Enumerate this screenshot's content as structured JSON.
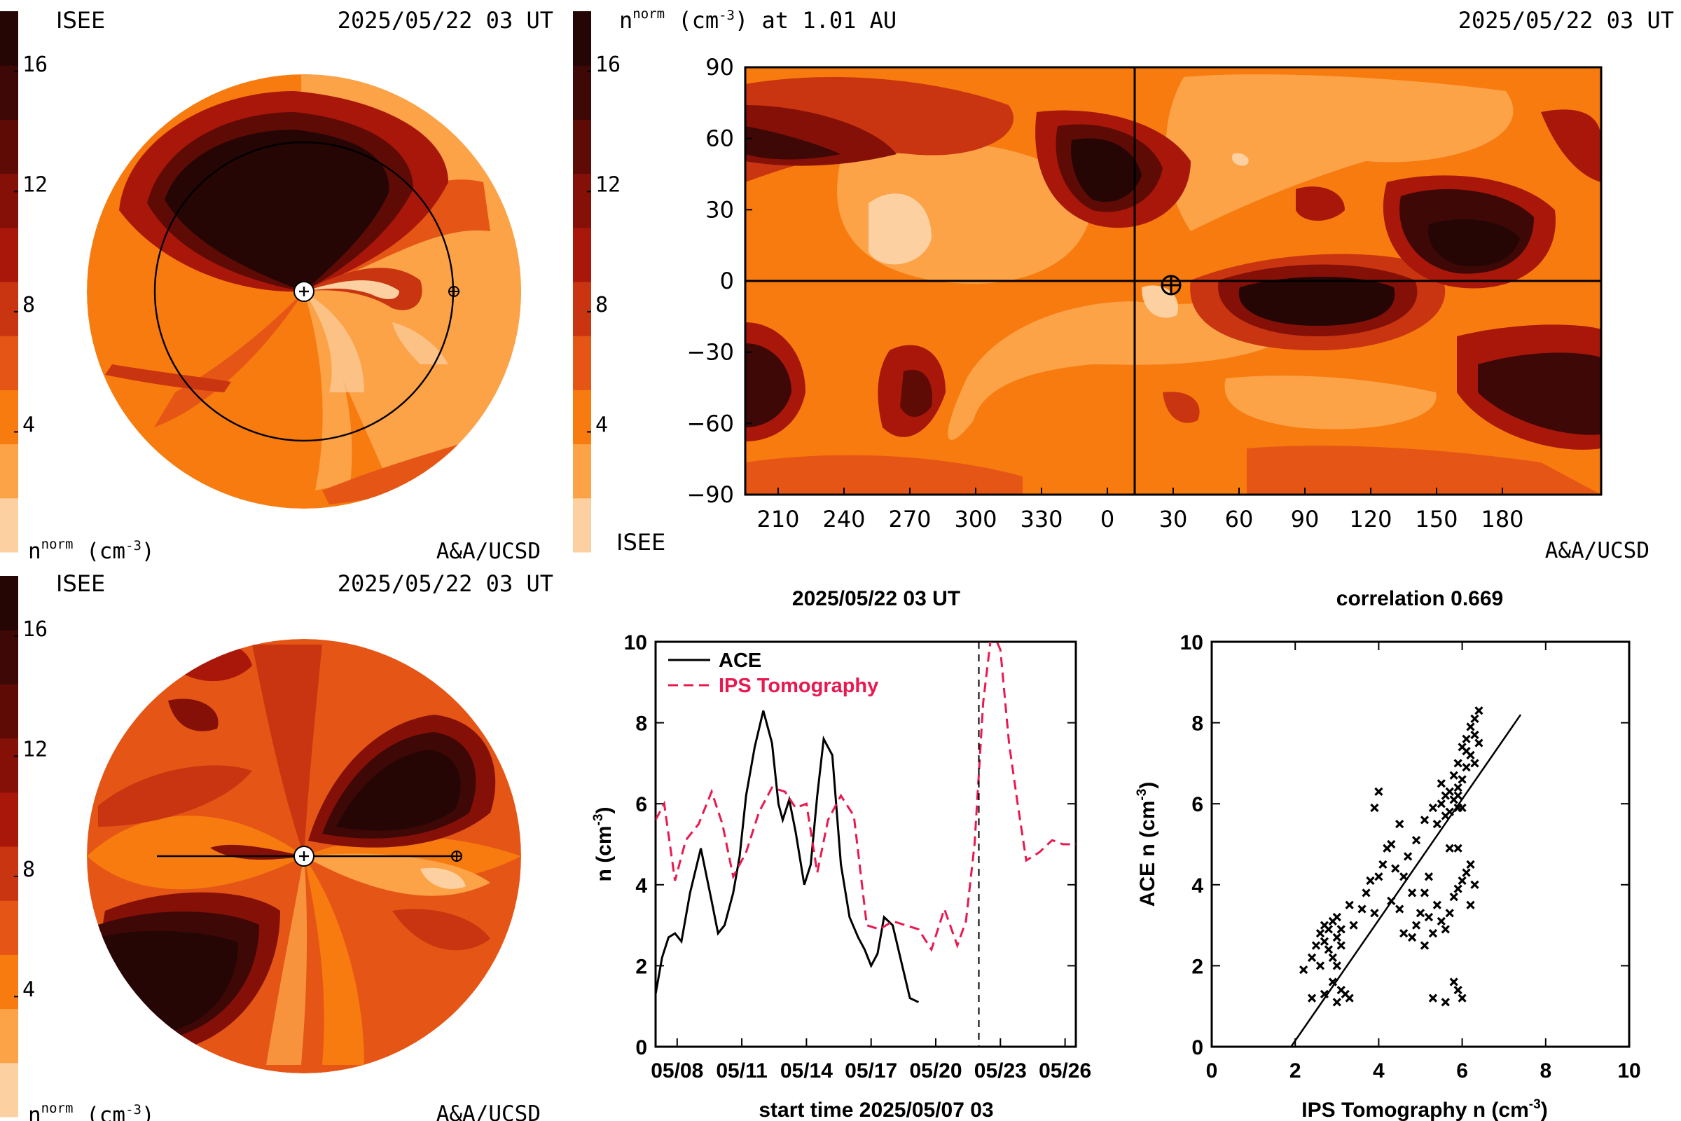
{
  "colors": {
    "scale": [
      "#fcd0a0",
      "#fca247",
      "#f77b0f",
      "#e55616",
      "#c83510",
      "#a8170a",
      "#851008",
      "#5e0b06",
      "#3e0806",
      "#250605"
    ],
    "ace": "#000000",
    "ips": "#e8194f"
  },
  "colorbar": {
    "ticks": [
      4,
      8,
      12,
      16
    ],
    "label": "n",
    "label_sup": "norm",
    "label_units": " (cm",
    "label_units_sup": "-3",
    "label_units_end": ")"
  },
  "panel_top_left": {
    "org": "ISEE",
    "date": "2025/05/22 03 UT",
    "credit": "A&A/UCSD"
  },
  "panel_top_right": {
    "title": "n",
    "title_sup": "norm",
    "title_rest": " (cm",
    "title_rest_sup": "-3",
    "title_end": ") at 1.01 AU",
    "date": "2025/05/22 03 UT",
    "org": "ISEE",
    "credit": "A&A/UCSD",
    "x_ticks": [
      "210",
      "240",
      "270",
      "300",
      "330",
      "0",
      "30",
      "60",
      "90",
      "120",
      "150",
      "180"
    ],
    "y_ticks": [
      "90",
      "60",
      "30",
      "0",
      "−30",
      "−60",
      "−90"
    ],
    "earth_marker": "earth-icon"
  },
  "panel_bottom_left": {
    "org": "ISEE",
    "date": "2025/05/22 03 UT",
    "credit": "A&A/UCSD"
  },
  "chart_data": [
    {
      "type": "line",
      "title": "2025/05/22 03 UT",
      "xlabel": "start time 2025/05/07 03",
      "ylabel": "n (cm",
      "ylabel_sup": "-3",
      "ylabel_end": ")",
      "x_tick_labels": [
        "05/08",
        "05/11",
        "05/14",
        "05/17",
        "05/20",
        "05/23",
        "05/26"
      ],
      "x_tick_days": [
        1,
        4,
        7,
        10,
        13,
        16,
        19
      ],
      "xlim_days": [
        0,
        19.5
      ],
      "ylim": [
        0,
        10
      ],
      "y_ticks": [
        0,
        2,
        4,
        6,
        8,
        10
      ],
      "current_time_day": 15.0,
      "series": [
        {
          "name": "ACE",
          "style": "solid",
          "x": [
            0,
            0.3,
            0.6,
            0.9,
            1.2,
            1.6,
            2.1,
            2.6,
            2.9,
            3.2,
            3.6,
            3.9,
            4.2,
            4.6,
            5.0,
            5.4,
            5.7,
            5.9,
            6.2,
            6.5,
            6.9,
            7.2,
            7.5,
            7.8,
            8.2,
            8.6,
            9.0,
            9.4,
            9.7,
            10.0,
            10.3,
            10.6,
            11.0,
            11.4,
            11.8,
            12.2,
            12.6,
            13.0,
            13.4,
            13.8,
            14.2,
            14.6,
            15.0
          ],
          "values": [
            1.3,
            2.2,
            2.7,
            2.8,
            2.6,
            3.8,
            4.9,
            3.6,
            2.8,
            3.0,
            3.8,
            4.7,
            6.2,
            7.4,
            8.3,
            7.5,
            6.0,
            5.6,
            6.1,
            5.3,
            4.0,
            4.5,
            6.2,
            7.6,
            7.2,
            4.5,
            3.2,
            2.7,
            2.4,
            2.0,
            2.3,
            3.2,
            3.0,
            2.1,
            1.2,
            1.1,
            null,
            null,
            null,
            null,
            null,
            null,
            null
          ]
        },
        {
          "name": "IPS Tomography",
          "style": "dashed",
          "x": [
            0,
            0.4,
            0.9,
            1.4,
            2.0,
            2.6,
            3.1,
            3.6,
            4.2,
            4.8,
            5.4,
            6.0,
            6.5,
            7.0,
            7.5,
            8.0,
            8.6,
            9.2,
            9.8,
            10.4,
            11.0,
            11.6,
            12.2,
            12.8,
            13.4,
            14.0,
            14.4,
            14.8,
            15.2,
            15.6,
            16.0,
            16.4,
            16.8,
            17.2,
            17.8,
            18.4,
            18.9,
            19.4,
            19.5
          ],
          "values": [
            5.6,
            6.0,
            4.1,
            5.1,
            5.5,
            6.3,
            5.5,
            4.2,
            4.8,
            5.8,
            6.4,
            6.3,
            5.9,
            6.0,
            4.3,
            5.6,
            6.2,
            5.7,
            3.0,
            2.9,
            3.1,
            3.0,
            2.9,
            2.4,
            3.4,
            2.5,
            3.1,
            5.0,
            8.5,
            10.3,
            9.8,
            7.5,
            6.0,
            4.6,
            4.8,
            5.1,
            5.0,
            5.0,
            5.0
          ]
        }
      ],
      "legend": "top-left"
    },
    {
      "type": "scatter",
      "title": "correlation 0.669",
      "xlabel": "IPS Tomography n (cm",
      "xlabel_sup": "-3",
      "xlabel_end": ")",
      "ylabel": "ACE n (cm",
      "ylabel_sup": "-3",
      "ylabel_end": ")",
      "xlim": [
        0,
        10
      ],
      "ylim": [
        0,
        10
      ],
      "x_ticks": [
        0,
        2,
        4,
        6,
        8,
        10
      ],
      "y_ticks": [
        0,
        2,
        4,
        6,
        8,
        10
      ],
      "fit_line": {
        "x": [
          1.9,
          7.4
        ],
        "y": [
          0.0,
          8.2
        ]
      },
      "points": [
        [
          2.2,
          1.9
        ],
        [
          2.4,
          2.2
        ],
        [
          2.5,
          2.5
        ],
        [
          2.6,
          2.8
        ],
        [
          2.7,
          2.6
        ],
        [
          2.7,
          3.0
        ],
        [
          2.8,
          2.4
        ],
        [
          2.8,
          2.9
        ],
        [
          2.9,
          2.2
        ],
        [
          2.9,
          3.1
        ],
        [
          2.9,
          1.6
        ],
        [
          3.0,
          2.7
        ],
        [
          3.0,
          3.2
        ],
        [
          3.0,
          2.0
        ],
        [
          3.1,
          2.9
        ],
        [
          3.1,
          1.4
        ],
        [
          3.2,
          1.3
        ],
        [
          3.3,
          1.2
        ],
        [
          2.4,
          1.2
        ],
        [
          2.7,
          1.3
        ],
        [
          3.0,
          1.1
        ],
        [
          3.1,
          2.5
        ],
        [
          2.6,
          2.0
        ],
        [
          3.3,
          3.5
        ],
        [
          3.4,
          3.0
        ],
        [
          3.6,
          3.4
        ],
        [
          3.7,
          3.8
        ],
        [
          3.8,
          4.1
        ],
        [
          3.9,
          3.3
        ],
        [
          4.0,
          4.2
        ],
        [
          4.1,
          4.5
        ],
        [
          4.2,
          4.9
        ],
        [
          4.3,
          5.0
        ],
        [
          4.3,
          3.6
        ],
        [
          4.4,
          4.4
        ],
        [
          4.5,
          3.4
        ],
        [
          4.6,
          4.2
        ],
        [
          4.6,
          2.8
        ],
        [
          4.7,
          4.7
        ],
        [
          4.8,
          2.7
        ],
        [
          4.8,
          3.8
        ],
        [
          4.9,
          3.0
        ],
        [
          5.0,
          3.3
        ],
        [
          5.1,
          3.8
        ],
        [
          5.1,
          2.5
        ],
        [
          5.2,
          4.2
        ],
        [
          5.2,
          3.2
        ],
        [
          5.3,
          2.8
        ],
        [
          5.4,
          3.5
        ],
        [
          5.5,
          3.1
        ],
        [
          5.6,
          2.9
        ],
        [
          5.7,
          3.3
        ],
        [
          5.8,
          3.7
        ],
        [
          5.9,
          3.9
        ],
        [
          6.0,
          4.1
        ],
        [
          6.1,
          4.3
        ],
        [
          6.2,
          3.5
        ],
        [
          6.3,
          4.0
        ],
        [
          6.2,
          4.5
        ],
        [
          5.9,
          4.9
        ],
        [
          5.7,
          4.9
        ],
        [
          4.0,
          6.3
        ],
        [
          4.5,
          5.5
        ],
        [
          3.9,
          5.9
        ],
        [
          4.9,
          5.1
        ],
        [
          5.1,
          5.6
        ],
        [
          5.3,
          5.9
        ],
        [
          5.4,
          5.5
        ],
        [
          5.5,
          6.0
        ],
        [
          5.5,
          6.5
        ],
        [
          5.6,
          6.2
        ],
        [
          5.6,
          5.7
        ],
        [
          5.7,
          6.3
        ],
        [
          5.7,
          5.8
        ],
        [
          5.8,
          6.7
        ],
        [
          5.8,
          6.1
        ],
        [
          5.9,
          6.4
        ],
        [
          5.9,
          5.9
        ],
        [
          5.9,
          7.0
        ],
        [
          6.0,
          7.4
        ],
        [
          6.0,
          6.6
        ],
        [
          6.1,
          6.9
        ],
        [
          6.1,
          7.6
        ],
        [
          6.2,
          7.2
        ],
        [
          6.2,
          7.9
        ],
        [
          6.3,
          7.7
        ],
        [
          6.3,
          8.1
        ],
        [
          6.4,
          7.5
        ],
        [
          6.4,
          8.3
        ],
        [
          6.3,
          7.0
        ],
        [
          6.1,
          7.3
        ],
        [
          5.9,
          6.2
        ],
        [
          6.0,
          5.9
        ],
        [
          5.3,
          1.2
        ],
        [
          5.8,
          1.6
        ],
        [
          5.9,
          1.4
        ],
        [
          6.0,
          1.2
        ],
        [
          5.6,
          1.1
        ]
      ]
    }
  ]
}
